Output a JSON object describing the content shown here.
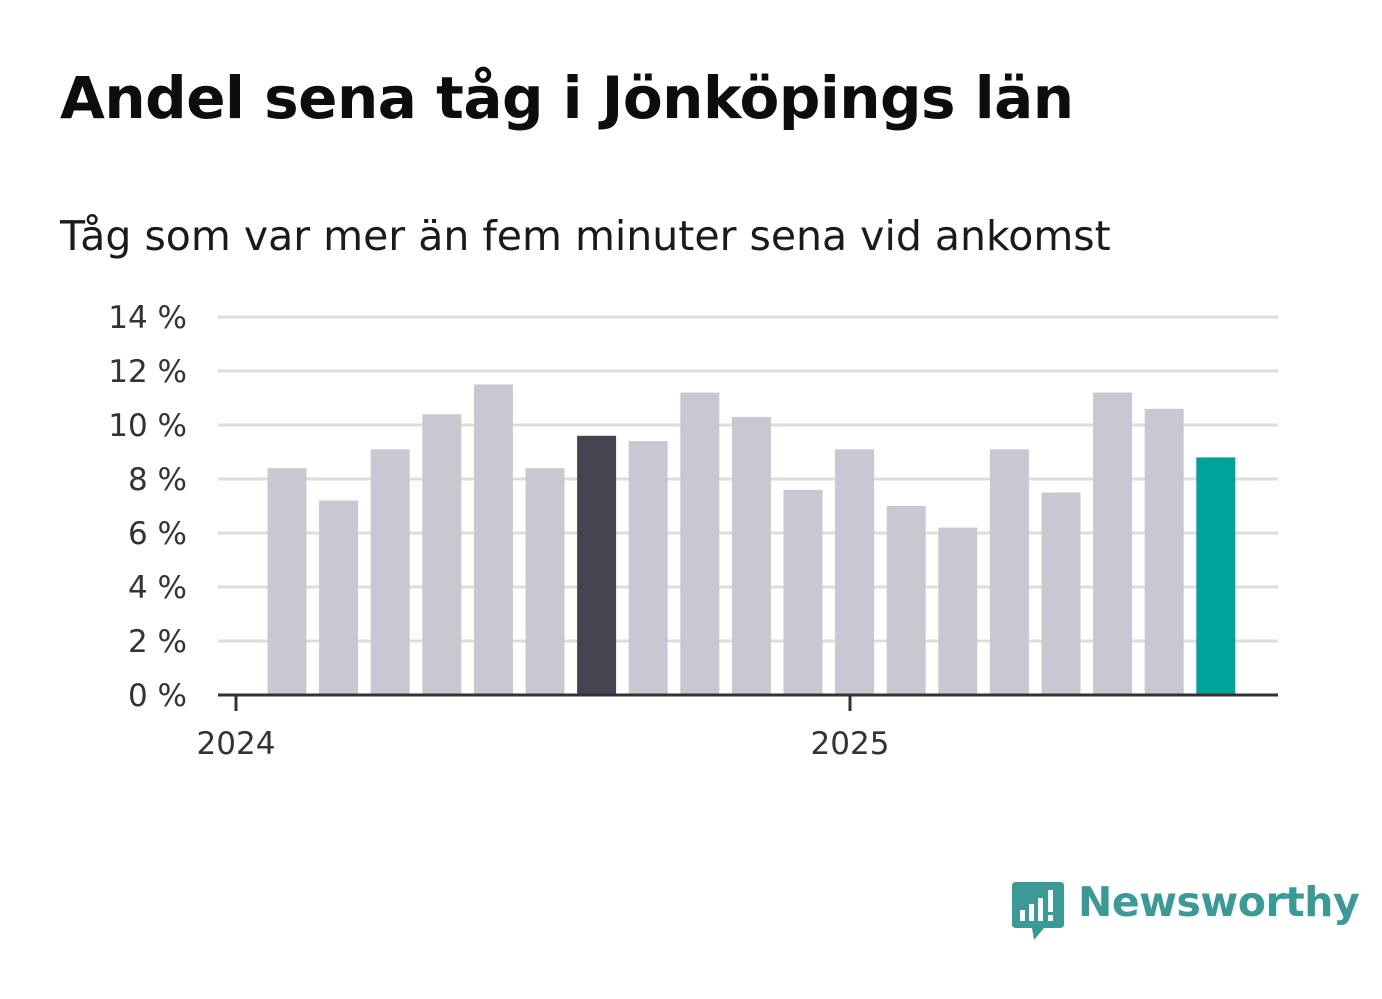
{
  "title": "Andel sena tåg i Jönköpings län",
  "subtitle": "Tåg som var mer än fem minuter sena vid ankomst",
  "brand": {
    "name": "Newsworthy",
    "color": "#3a9a95",
    "icon": "newsworthy-logo-icon"
  },
  "chart_data": {
    "type": "bar",
    "title": "Andel sena tåg i Jönköpings län",
    "subtitle": "Tåg som var mer än fem minuter sena vid ankomst",
    "x_tick_labels": [
      "2024",
      "2025"
    ],
    "y_tick_labels": [
      "0 %",
      "2 %",
      "4 %",
      "6 %",
      "8 %",
      "10 %",
      "12 %",
      "14 %"
    ],
    "ylim": [
      0,
      14
    ],
    "grid": true,
    "values": [
      8.4,
      7.2,
      9.1,
      10.4,
      11.5,
      8.4,
      9.6,
      9.4,
      11.2,
      10.3,
      7.6,
      9.1,
      7.0,
      6.2,
      9.1,
      7.5,
      11.2,
      10.6,
      8.8
    ],
    "colors": {
      "default": "#c8c7d2",
      "highlight": "#45434f",
      "latest": "#00a398",
      "grid": "#dddddd",
      "axis": "#333333"
    },
    "highlight_index": 6,
    "latest_index": 18
  }
}
